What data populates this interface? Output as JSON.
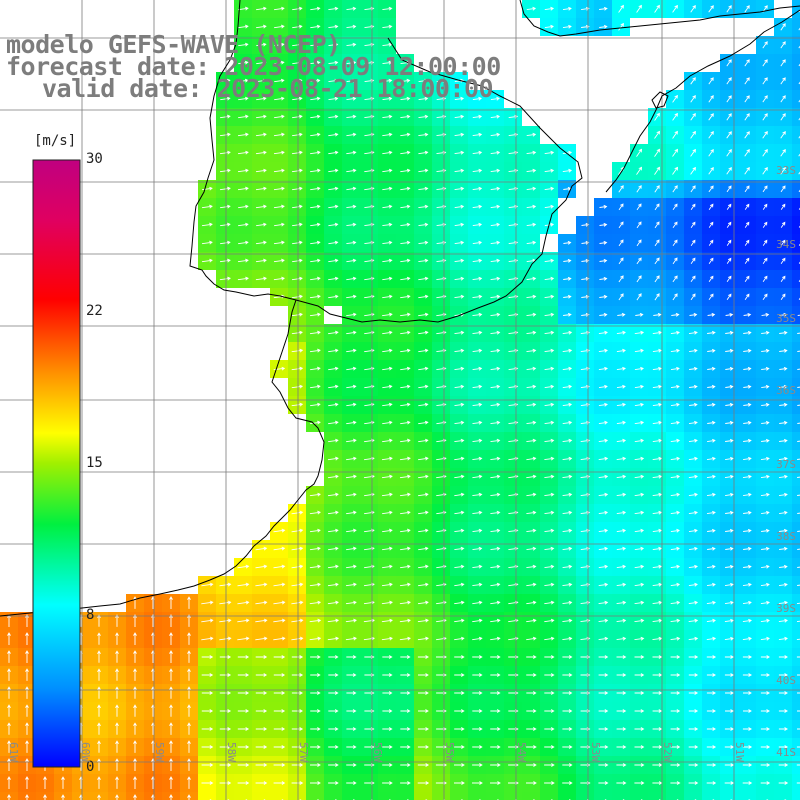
{
  "titles": {
    "model": "modelo GEFS-WAVE (NCEP)",
    "forecast": "forecast date: 2023-08-09 12:00:00",
    "valid": "valid date: 2023-08-21 18:00:00"
  },
  "colorbar": {
    "unit": "[m/s]",
    "ticks": [
      "30",
      "22",
      "15",
      "8",
      "0"
    ],
    "tick_values": [
      30,
      22,
      15,
      8,
      0
    ],
    "min": 0,
    "max": 30
  },
  "lat_labels": [
    "33S",
    "34S",
    "35S",
    "36S",
    "37S",
    "38S",
    "39S",
    "40S",
    "41S"
  ],
  "lon_labels": [
    "61W",
    "60W",
    "59W",
    "58W",
    "57W",
    "56W",
    "55W",
    "54W",
    "53W",
    "52W",
    "51W"
  ],
  "colors": {
    "land": "#ffffff",
    "coast": "#000000",
    "grid": "#7a7a7a",
    "arrow": "#ffffff",
    "title": "#7d7d7d"
  }
}
